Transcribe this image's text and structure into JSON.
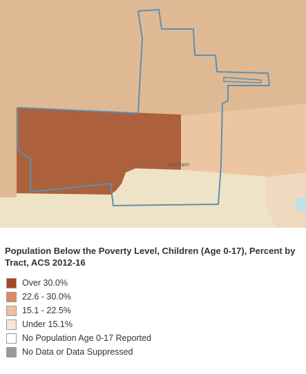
{
  "map": {
    "place_label": "Bonham",
    "colors": {
      "class_light": "#dfb993",
      "class_mid": "#ecc6a2",
      "class_over": "#ad603c",
      "class_under": "#eee3c6",
      "background_tract": "#f1d9c0",
      "water": "#bfe0e8",
      "outline": "#5d8fb0"
    }
  },
  "legend": {
    "title": "Population Below the Poverty Level, Children (Age 0-17), Percent by Tract, ACS 2012-16",
    "items": [
      {
        "label": "Over 30.0%",
        "color": "#a8452a"
      },
      {
        "label": "22.6 - 30.0%",
        "color": "#dc8a6a"
      },
      {
        "label": "15.1 - 22.5%",
        "color": "#f0bf9f"
      },
      {
        "label": "Under 15.1%",
        "color": "#fae6d6"
      },
      {
        "label": "No Population Age 0-17 Reported",
        "color": "#ffffff"
      },
      {
        "label": "No Data or Data Suppressed",
        "color": "#9b9b9b"
      }
    ]
  }
}
